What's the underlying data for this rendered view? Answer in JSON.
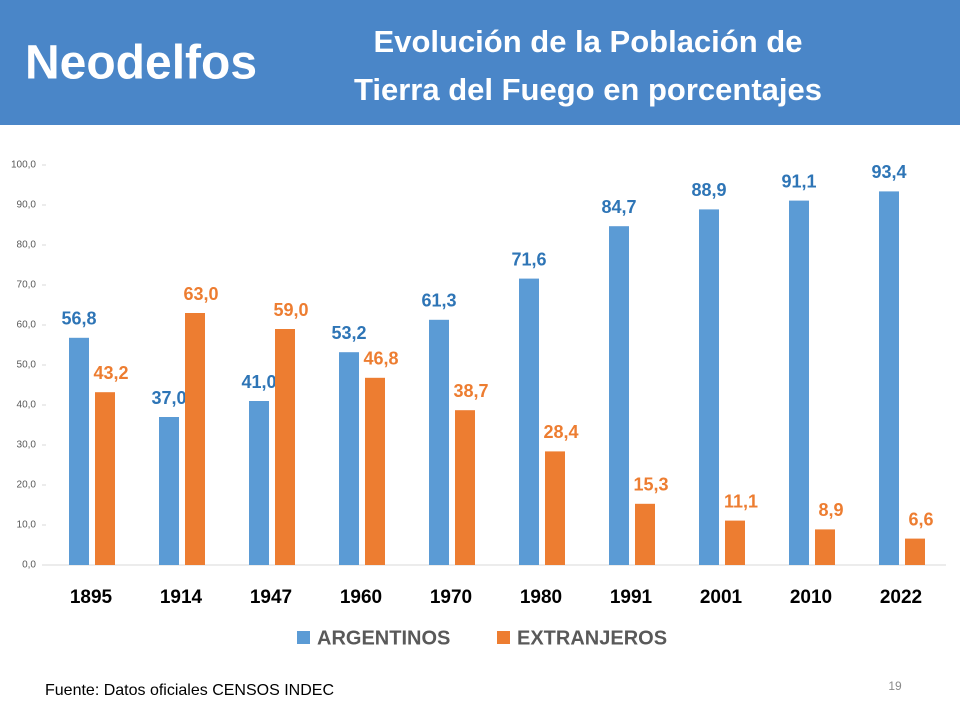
{
  "header": {
    "brand": "Neodelfos",
    "title": [
      "Evolución de la Población de",
      "Tierra del Fuego en porcentajes"
    ]
  },
  "chart_data": {
    "type": "bar",
    "categories": [
      "1895",
      "1914",
      "1947",
      "1960",
      "1970",
      "1980",
      "1991",
      "2001",
      "2010",
      "2022"
    ],
    "series": [
      {
        "name": "ARGENTINOS",
        "color": "#5b9bd5",
        "label_color": "#2e75b6",
        "values": [
          56.8,
          37.0,
          41.0,
          53.2,
          61.3,
          71.6,
          84.7,
          88.9,
          91.1,
          93.4
        ],
        "value_labels": [
          "56,8",
          "37,0",
          "41,0",
          "53,2",
          "61,3",
          "71,6",
          "84,7",
          "88,9",
          "91,1",
          "93,4"
        ]
      },
      {
        "name": "EXTRANJEROS",
        "color": "#ed7d31",
        "label_color": "#ed7d31",
        "values": [
          43.2,
          63.0,
          59.0,
          46.8,
          38.7,
          28.4,
          15.3,
          11.1,
          8.9,
          6.6
        ],
        "value_labels": [
          "43,2",
          "63,0",
          "59,0",
          "46,8",
          "38,7",
          "28,4",
          "15,3",
          "11,1",
          "8,9",
          "6,6"
        ]
      }
    ],
    "ylim": [
      0,
      100
    ],
    "yticks": [
      {
        "value": 0,
        "label": "0,0"
      },
      {
        "value": 10,
        "label": "10,0"
      },
      {
        "value": 20,
        "label": "20,0"
      },
      {
        "value": 30,
        "label": "30,0"
      },
      {
        "value": 40,
        "label": "40,0"
      },
      {
        "value": 50,
        "label": "50,0"
      },
      {
        "value": 60,
        "label": "60,0"
      },
      {
        "value": 70,
        "label": "70,0"
      },
      {
        "value": 80,
        "label": "80,0"
      },
      {
        "value": 90,
        "label": "90,0"
      },
      {
        "value": 100,
        "label": "100,0"
      }
    ],
    "legend": "bottom"
  },
  "footer": {
    "source": "Fuente: Datos oficiales CENSOS INDEC",
    "page": "19"
  }
}
